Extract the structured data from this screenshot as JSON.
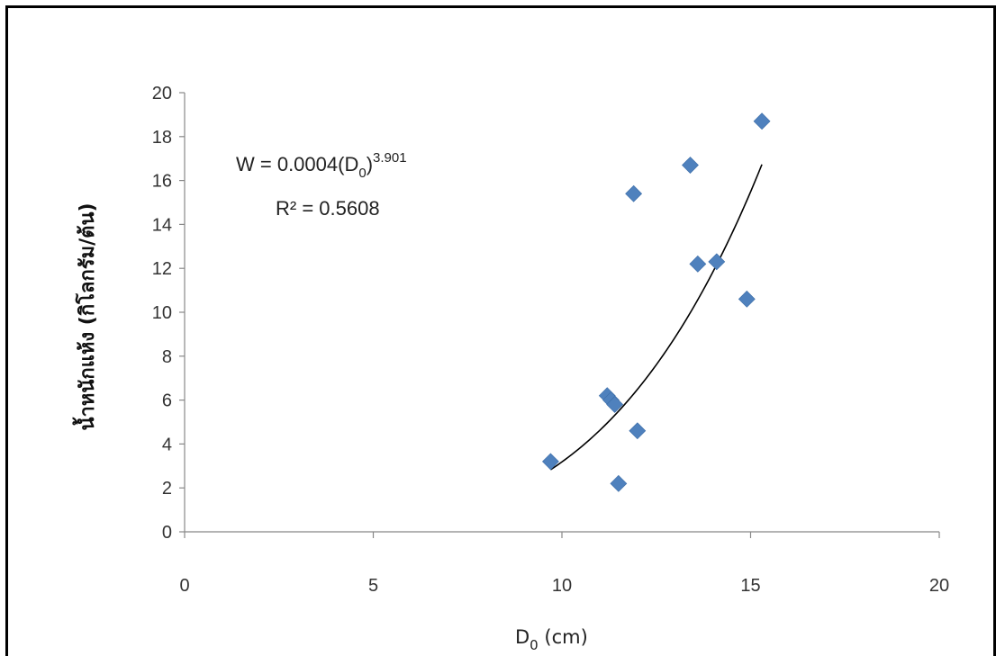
{
  "chart_data": {
    "type": "scatter",
    "title": "",
    "xlabel": "D",
    "xlabel_sub": "0",
    "xlabel_unit": " (cm)",
    "ylabel": "น้ำหนักแห้ง (กิโลกรัม/ต้น)",
    "xlim": [
      0,
      20
    ],
    "ylim": [
      0,
      20
    ],
    "x_ticks": [
      "0",
      "5",
      "10",
      "15",
      "20"
    ],
    "y_ticks": [
      "0",
      "2",
      "4",
      "6",
      "8",
      "10",
      "12",
      "14",
      "16",
      "18",
      "20"
    ],
    "grid": false,
    "legend": "none",
    "marker_color": "#4F81BD",
    "trendline_color": "#000000",
    "series": [
      {
        "points": [
          {
            "x": 9.7,
            "y": 3.2
          },
          {
            "x": 11.5,
            "y": 2.2
          },
          {
            "x": 11.2,
            "y": 6.2
          },
          {
            "x": 11.3,
            "y": 6.0
          },
          {
            "x": 11.4,
            "y": 5.8
          },
          {
            "x": 12.0,
            "y": 4.6
          },
          {
            "x": 11.9,
            "y": 15.4
          },
          {
            "x": 13.4,
            "y": 16.7
          },
          {
            "x": 13.6,
            "y": 12.2
          },
          {
            "x": 14.1,
            "y": 12.3
          },
          {
            "x": 14.9,
            "y": 10.6
          },
          {
            "x": 15.3,
            "y": 18.7
          }
        ]
      }
    ],
    "trendline": {
      "type": "power",
      "a": 0.0004,
      "b": 3.901,
      "x_range": [
        9.7,
        15.3
      ]
    },
    "annotations": {
      "equation_prefix": "W = 0.0004(D",
      "equation_sub": "0",
      "equation_close": ")",
      "equation_exp": "3.901",
      "r2": "R² = 0.5608"
    }
  }
}
